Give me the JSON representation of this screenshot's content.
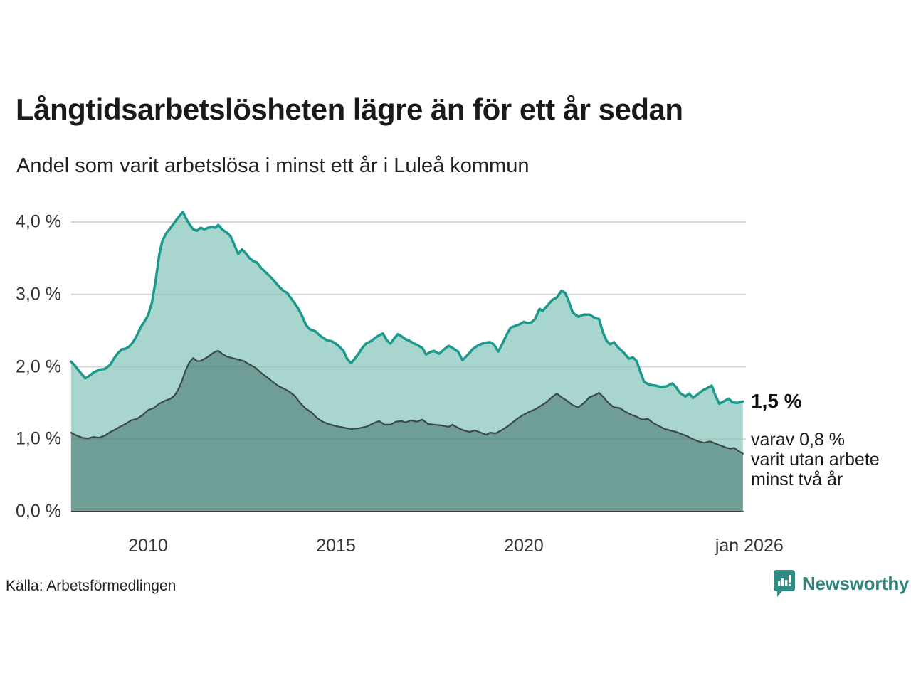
{
  "header": {
    "title": "Långtidsarbetslösheten lägre än för ett år sedan",
    "subtitle": "Andel som varit arbetslösa i minst ett år i Luleå kommun"
  },
  "annotation": {
    "value_label": "1,5 %",
    "detail_lines": [
      "varav 0,8 %",
      "varit utan arbete",
      "minst två år"
    ]
  },
  "footer": {
    "source": "Källa: Arbetsförmedlingen",
    "brand": "Newsworthy"
  },
  "colors": {
    "total_line": "#1b998c",
    "total_fill": "#a8d5cd",
    "twoplus_line": "#3c4b49",
    "twoplus_fill": "#6f9e97",
    "gridline": "#e2e2e2",
    "axis": "#3f3f3f",
    "brand_teal": "#2f857c"
  },
  "chart_data": {
    "type": "area",
    "title": "Långtidsarbetslösheten lägre än för ett år sedan",
    "subtitle": "Andel som varit arbetslösa i minst ett år i Luleå kommun",
    "unit": "%",
    "grid": true,
    "x_axis": {
      "range": [
        2007.95,
        2026.1
      ],
      "ticks": [
        {
          "label": "2010",
          "year": 2010
        },
        {
          "label": "2015",
          "year": 2015
        },
        {
          "label": "2020",
          "year": 2020
        },
        {
          "label": "jan 2026",
          "year": 2026
        }
      ]
    },
    "y_axis": {
      "range": [
        0,
        4.35
      ],
      "ticks": [
        {
          "label": "4,0 %",
          "value": 4
        },
        {
          "label": "3,0 %",
          "value": 3
        },
        {
          "label": "2,0 %",
          "value": 2
        },
        {
          "label": "1,0 %",
          "value": 1
        },
        {
          "label": "0,0 %",
          "value": 0
        }
      ]
    },
    "series": [
      {
        "name": "arbetslösa minst ett år",
        "end_value": "1,5 %",
        "points": [
          [
            2007.95,
            2.07
          ],
          [
            2008.05,
            2.02
          ],
          [
            2008.15,
            1.95
          ],
          [
            2008.25,
            1.89
          ],
          [
            2008.33,
            1.84
          ],
          [
            2008.45,
            1.88
          ],
          [
            2008.55,
            1.92
          ],
          [
            2008.7,
            1.96
          ],
          [
            2008.85,
            1.97
          ],
          [
            2009.0,
            2.03
          ],
          [
            2009.1,
            2.12
          ],
          [
            2009.2,
            2.19
          ],
          [
            2009.3,
            2.24
          ],
          [
            2009.4,
            2.25
          ],
          [
            2009.5,
            2.28
          ],
          [
            2009.6,
            2.34
          ],
          [
            2009.7,
            2.43
          ],
          [
            2009.8,
            2.54
          ],
          [
            2009.9,
            2.62
          ],
          [
            2010.0,
            2.71
          ],
          [
            2010.1,
            2.88
          ],
          [
            2010.2,
            3.18
          ],
          [
            2010.3,
            3.55
          ],
          [
            2010.38,
            3.74
          ],
          [
            2010.48,
            3.84
          ],
          [
            2010.6,
            3.92
          ],
          [
            2010.7,
            3.99
          ],
          [
            2010.8,
            4.06
          ],
          [
            2010.93,
            4.14
          ],
          [
            2011.0,
            4.06
          ],
          [
            2011.1,
            3.97
          ],
          [
            2011.2,
            3.9
          ],
          [
            2011.3,
            3.88
          ],
          [
            2011.4,
            3.92
          ],
          [
            2011.5,
            3.9
          ],
          [
            2011.6,
            3.92
          ],
          [
            2011.7,
            3.93
          ],
          [
            2011.8,
            3.92
          ],
          [
            2011.87,
            3.96
          ],
          [
            2011.97,
            3.9
          ],
          [
            2012.1,
            3.85
          ],
          [
            2012.2,
            3.8
          ],
          [
            2012.3,
            3.68
          ],
          [
            2012.4,
            3.56
          ],
          [
            2012.5,
            3.62
          ],
          [
            2012.6,
            3.57
          ],
          [
            2012.7,
            3.5
          ],
          [
            2012.8,
            3.46
          ],
          [
            2012.9,
            3.44
          ],
          [
            2013.0,
            3.37
          ],
          [
            2013.1,
            3.32
          ],
          [
            2013.2,
            3.27
          ],
          [
            2013.3,
            3.22
          ],
          [
            2013.4,
            3.16
          ],
          [
            2013.5,
            3.1
          ],
          [
            2013.6,
            3.05
          ],
          [
            2013.7,
            3.02
          ],
          [
            2013.8,
            2.95
          ],
          [
            2013.9,
            2.88
          ],
          [
            2014.0,
            2.8
          ],
          [
            2014.1,
            2.7
          ],
          [
            2014.2,
            2.58
          ],
          [
            2014.3,
            2.52
          ],
          [
            2014.45,
            2.49
          ],
          [
            2014.6,
            2.42
          ],
          [
            2014.75,
            2.37
          ],
          [
            2014.9,
            2.35
          ],
          [
            2015.05,
            2.3
          ],
          [
            2015.2,
            2.22
          ],
          [
            2015.3,
            2.11
          ],
          [
            2015.4,
            2.05
          ],
          [
            2015.5,
            2.11
          ],
          [
            2015.6,
            2.18
          ],
          [
            2015.7,
            2.26
          ],
          [
            2015.8,
            2.32
          ],
          [
            2015.95,
            2.36
          ],
          [
            2016.1,
            2.42
          ],
          [
            2016.25,
            2.46
          ],
          [
            2016.35,
            2.37
          ],
          [
            2016.45,
            2.32
          ],
          [
            2016.55,
            2.39
          ],
          [
            2016.65,
            2.45
          ],
          [
            2016.75,
            2.42
          ],
          [
            2016.85,
            2.38
          ],
          [
            2016.95,
            2.36
          ],
          [
            2017.05,
            2.33
          ],
          [
            2017.2,
            2.29
          ],
          [
            2017.3,
            2.26
          ],
          [
            2017.4,
            2.17
          ],
          [
            2017.5,
            2.2
          ],
          [
            2017.6,
            2.22
          ],
          [
            2017.75,
            2.18
          ],
          [
            2017.9,
            2.25
          ],
          [
            2018.0,
            2.29
          ],
          [
            2018.1,
            2.26
          ],
          [
            2018.25,
            2.21
          ],
          [
            2018.37,
            2.09
          ],
          [
            2018.5,
            2.16
          ],
          [
            2018.65,
            2.25
          ],
          [
            2018.8,
            2.3
          ],
          [
            2018.95,
            2.33
          ],
          [
            2019.1,
            2.34
          ],
          [
            2019.2,
            2.31
          ],
          [
            2019.32,
            2.21
          ],
          [
            2019.45,
            2.34
          ],
          [
            2019.55,
            2.45
          ],
          [
            2019.65,
            2.54
          ],
          [
            2019.8,
            2.57
          ],
          [
            2019.9,
            2.59
          ],
          [
            2020.0,
            2.62
          ],
          [
            2020.1,
            2.6
          ],
          [
            2020.2,
            2.61
          ],
          [
            2020.3,
            2.66
          ],
          [
            2020.42,
            2.8
          ],
          [
            2020.5,
            2.77
          ],
          [
            2020.6,
            2.83
          ],
          [
            2020.75,
            2.92
          ],
          [
            2020.88,
            2.96
          ],
          [
            2021.0,
            3.05
          ],
          [
            2021.1,
            3.02
          ],
          [
            2021.2,
            2.9
          ],
          [
            2021.3,
            2.75
          ],
          [
            2021.45,
            2.69
          ],
          [
            2021.6,
            2.72
          ],
          [
            2021.75,
            2.72
          ],
          [
            2021.9,
            2.67
          ],
          [
            2022.0,
            2.66
          ],
          [
            2022.1,
            2.48
          ],
          [
            2022.2,
            2.36
          ],
          [
            2022.3,
            2.31
          ],
          [
            2022.4,
            2.34
          ],
          [
            2022.5,
            2.27
          ],
          [
            2022.65,
            2.2
          ],
          [
            2022.8,
            2.11
          ],
          [
            2022.9,
            2.13
          ],
          [
            2023.0,
            2.08
          ],
          [
            2023.1,
            1.93
          ],
          [
            2023.2,
            1.79
          ],
          [
            2023.35,
            1.75
          ],
          [
            2023.5,
            1.74
          ],
          [
            2023.65,
            1.72
          ],
          [
            2023.8,
            1.73
          ],
          [
            2023.95,
            1.77
          ],
          [
            2024.05,
            1.72
          ],
          [
            2024.15,
            1.64
          ],
          [
            2024.3,
            1.59
          ],
          [
            2024.4,
            1.63
          ],
          [
            2024.5,
            1.57
          ],
          [
            2024.6,
            1.61
          ],
          [
            2024.75,
            1.67
          ],
          [
            2024.9,
            1.71
          ],
          [
            2025.0,
            1.74
          ],
          [
            2025.1,
            1.6
          ],
          [
            2025.2,
            1.49
          ],
          [
            2025.35,
            1.53
          ],
          [
            2025.45,
            1.56
          ],
          [
            2025.55,
            1.51
          ],
          [
            2025.68,
            1.5
          ],
          [
            2025.83,
            1.52
          ]
        ]
      },
      {
        "name": "varav utan arbete minst två år",
        "end_value": "0,8 %",
        "points": [
          [
            2007.95,
            1.09
          ],
          [
            2008.1,
            1.05
          ],
          [
            2008.25,
            1.02
          ],
          [
            2008.4,
            1.01
          ],
          [
            2008.55,
            1.03
          ],
          [
            2008.7,
            1.02
          ],
          [
            2008.85,
            1.05
          ],
          [
            2009.0,
            1.1
          ],
          [
            2009.12,
            1.13
          ],
          [
            2009.25,
            1.17
          ],
          [
            2009.4,
            1.21
          ],
          [
            2009.55,
            1.26
          ],
          [
            2009.7,
            1.28
          ],
          [
            2009.85,
            1.33
          ],
          [
            2010.0,
            1.4
          ],
          [
            2010.15,
            1.43
          ],
          [
            2010.3,
            1.49
          ],
          [
            2010.45,
            1.53
          ],
          [
            2010.6,
            1.56
          ],
          [
            2010.7,
            1.6
          ],
          [
            2010.8,
            1.68
          ],
          [
            2010.9,
            1.8
          ],
          [
            2011.0,
            1.95
          ],
          [
            2011.1,
            2.06
          ],
          [
            2011.2,
            2.12
          ],
          [
            2011.3,
            2.08
          ],
          [
            2011.4,
            2.08
          ],
          [
            2011.5,
            2.11
          ],
          [
            2011.6,
            2.14
          ],
          [
            2011.7,
            2.18
          ],
          [
            2011.8,
            2.21
          ],
          [
            2011.87,
            2.22
          ],
          [
            2011.97,
            2.18
          ],
          [
            2012.1,
            2.14
          ],
          [
            2012.25,
            2.12
          ],
          [
            2012.4,
            2.1
          ],
          [
            2012.55,
            2.08
          ],
          [
            2012.7,
            2.03
          ],
          [
            2012.85,
            1.99
          ],
          [
            2013.0,
            1.92
          ],
          [
            2013.15,
            1.86
          ],
          [
            2013.3,
            1.8
          ],
          [
            2013.45,
            1.74
          ],
          [
            2013.6,
            1.7
          ],
          [
            2013.75,
            1.66
          ],
          [
            2013.9,
            1.6
          ],
          [
            2014.05,
            1.5
          ],
          [
            2014.2,
            1.42
          ],
          [
            2014.35,
            1.37
          ],
          [
            2014.5,
            1.29
          ],
          [
            2014.65,
            1.24
          ],
          [
            2014.8,
            1.21
          ],
          [
            2015.0,
            1.18
          ],
          [
            2015.2,
            1.16
          ],
          [
            2015.4,
            1.14
          ],
          [
            2015.6,
            1.15
          ],
          [
            2015.8,
            1.17
          ],
          [
            2016.0,
            1.22
          ],
          [
            2016.15,
            1.25
          ],
          [
            2016.3,
            1.2
          ],
          [
            2016.45,
            1.2
          ],
          [
            2016.6,
            1.24
          ],
          [
            2016.75,
            1.25
          ],
          [
            2016.85,
            1.23
          ],
          [
            2017.0,
            1.26
          ],
          [
            2017.15,
            1.24
          ],
          [
            2017.3,
            1.27
          ],
          [
            2017.45,
            1.21
          ],
          [
            2017.6,
            1.2
          ],
          [
            2017.8,
            1.19
          ],
          [
            2018.0,
            1.17
          ],
          [
            2018.1,
            1.2
          ],
          [
            2018.2,
            1.17
          ],
          [
            2018.35,
            1.13
          ],
          [
            2018.55,
            1.1
          ],
          [
            2018.7,
            1.12
          ],
          [
            2018.85,
            1.09
          ],
          [
            2019.0,
            1.06
          ],
          [
            2019.1,
            1.09
          ],
          [
            2019.25,
            1.08
          ],
          [
            2019.4,
            1.12
          ],
          [
            2019.55,
            1.17
          ],
          [
            2019.7,
            1.23
          ],
          [
            2019.85,
            1.29
          ],
          [
            2020.0,
            1.34
          ],
          [
            2020.15,
            1.38
          ],
          [
            2020.3,
            1.41
          ],
          [
            2020.45,
            1.46
          ],
          [
            2020.6,
            1.51
          ],
          [
            2020.75,
            1.58
          ],
          [
            2020.88,
            1.63
          ],
          [
            2021.0,
            1.58
          ],
          [
            2021.15,
            1.53
          ],
          [
            2021.3,
            1.47
          ],
          [
            2021.45,
            1.44
          ],
          [
            2021.6,
            1.5
          ],
          [
            2021.75,
            1.58
          ],
          [
            2021.9,
            1.61
          ],
          [
            2022.0,
            1.64
          ],
          [
            2022.1,
            1.59
          ],
          [
            2022.25,
            1.5
          ],
          [
            2022.4,
            1.44
          ],
          [
            2022.55,
            1.43
          ],
          [
            2022.7,
            1.38
          ],
          [
            2022.85,
            1.34
          ],
          [
            2023.0,
            1.31
          ],
          [
            2023.15,
            1.27
          ],
          [
            2023.3,
            1.28
          ],
          [
            2023.45,
            1.22
          ],
          [
            2023.6,
            1.18
          ],
          [
            2023.75,
            1.14
          ],
          [
            2023.9,
            1.12
          ],
          [
            2024.05,
            1.1
          ],
          [
            2024.2,
            1.07
          ],
          [
            2024.35,
            1.04
          ],
          [
            2024.5,
            1.0
          ],
          [
            2024.65,
            0.97
          ],
          [
            2024.8,
            0.95
          ],
          [
            2024.95,
            0.97
          ],
          [
            2025.1,
            0.94
          ],
          [
            2025.25,
            0.91
          ],
          [
            2025.4,
            0.88
          ],
          [
            2025.5,
            0.87
          ],
          [
            2025.6,
            0.88
          ],
          [
            2025.7,
            0.84
          ],
          [
            2025.83,
            0.8
          ]
        ]
      }
    ]
  }
}
